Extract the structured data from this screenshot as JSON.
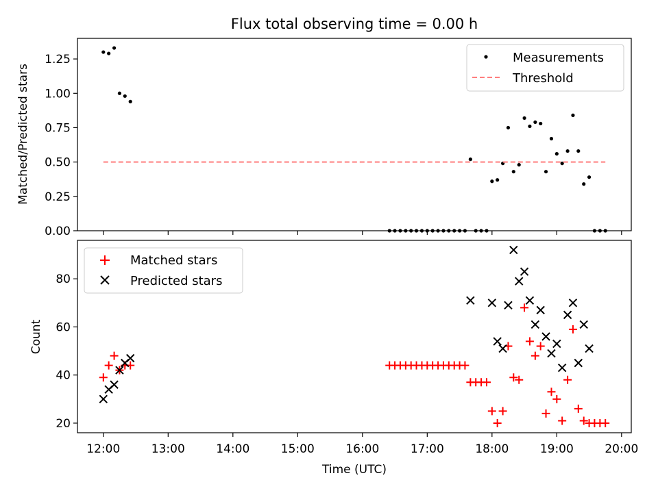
{
  "chart_data": [
    {
      "type": "scatter",
      "title": "Flux total observing time = 0.00 h",
      "xlabel": "",
      "ylabel": "Matched/Predicted stars",
      "xlim": [
        11.6,
        20.15
      ],
      "ylim": [
        0,
        1.4
      ],
      "xticks": [
        12,
        13,
        14,
        15,
        16,
        17,
        18,
        19,
        20
      ],
      "yticks": [
        0.0,
        0.25,
        0.5,
        0.75,
        1.0,
        1.25
      ],
      "ytick_labels": [
        "0.00",
        "0.25",
        "0.50",
        "0.75",
        "1.00",
        "1.25"
      ],
      "legend_position": "top-right",
      "series": [
        {
          "name": "Measurements",
          "kind": "scatter",
          "marker": "dot",
          "color": "#000000",
          "x": [
            12.0,
            12.083,
            12.167,
            12.25,
            12.333,
            12.417,
            16.417,
            16.5,
            16.583,
            16.667,
            16.75,
            16.833,
            16.917,
            17.0,
            17.083,
            17.167,
            17.25,
            17.333,
            17.417,
            17.5,
            17.583,
            17.667,
            17.75,
            17.833,
            17.917,
            18.0,
            18.083,
            18.167,
            18.25,
            18.333,
            18.417,
            18.5,
            18.583,
            18.667,
            18.75,
            18.833,
            18.917,
            19.0,
            19.083,
            19.167,
            19.25,
            19.333,
            19.417,
            19.5,
            19.583,
            19.667,
            19.75
          ],
          "y": [
            1.3,
            1.29,
            1.33,
            1.0,
            0.98,
            0.94,
            0.0,
            0.0,
            0.0,
            0.0,
            0.0,
            0.0,
            0.0,
            0.0,
            0.0,
            0.0,
            0.0,
            0.0,
            0.0,
            0.0,
            0.0,
            0.52,
            0.0,
            0.0,
            0.0,
            0.36,
            0.37,
            0.49,
            0.75,
            0.43,
            0.48,
            0.82,
            0.76,
            0.79,
            0.78,
            0.43,
            0.67,
            0.56,
            0.49,
            0.58,
            0.84,
            0.58,
            0.34,
            0.39,
            0.0,
            0.0,
            0.0
          ]
        },
        {
          "name": "Threshold",
          "kind": "line",
          "style": "dashed",
          "color": "#ff7f7f",
          "x": [
            12.0,
            19.75
          ],
          "y": [
            0.5,
            0.5
          ]
        }
      ]
    },
    {
      "type": "scatter",
      "title": "",
      "xlabel": "Time (UTC)",
      "ylabel": "Count",
      "xlim": [
        11.6,
        20.15
      ],
      "ylim": [
        16,
        96
      ],
      "xticks": [
        12,
        13,
        14,
        15,
        16,
        17,
        18,
        19,
        20
      ],
      "xtick_labels": [
        "12:00",
        "13:00",
        "14:00",
        "15:00",
        "16:00",
        "17:00",
        "18:00",
        "19:00",
        "20:00"
      ],
      "yticks": [
        20,
        40,
        60,
        80
      ],
      "ytick_labels": [
        "20",
        "40",
        "60",
        "80"
      ],
      "legend_position": "top-left",
      "series": [
        {
          "name": "Matched stars",
          "marker": "plus",
          "color": "#ff0000",
          "x": [
            12.0,
            12.083,
            12.167,
            12.25,
            12.333,
            12.417,
            16.417,
            16.5,
            16.583,
            16.667,
            16.75,
            16.833,
            16.917,
            17.0,
            17.083,
            17.167,
            17.25,
            17.333,
            17.417,
            17.5,
            17.583,
            17.667,
            17.75,
            17.833,
            17.917,
            18.0,
            18.083,
            18.167,
            18.25,
            18.333,
            18.417,
            18.5,
            18.583,
            18.667,
            18.75,
            18.833,
            18.917,
            19.0,
            19.083,
            19.167,
            19.25,
            19.333,
            19.417,
            19.5,
            19.583,
            19.667,
            19.75
          ],
          "y": [
            39,
            44,
            48,
            42,
            44,
            44,
            44,
            44,
            44,
            44,
            44,
            44,
            44,
            44,
            44,
            44,
            44,
            44,
            44,
            44,
            44,
            37,
            37,
            37,
            37,
            25,
            20,
            25,
            52,
            39,
            38,
            68,
            54,
            48,
            52,
            24,
            33,
            30,
            21,
            38,
            59,
            26,
            21,
            20,
            20,
            20,
            20
          ]
        },
        {
          "name": "Predicted stars",
          "marker": "x",
          "color": "#000000",
          "x": [
            12.0,
            12.083,
            12.167,
            12.25,
            12.333,
            12.417,
            17.667,
            18.0,
            18.083,
            18.167,
            18.25,
            18.333,
            18.417,
            18.5,
            18.583,
            18.667,
            18.75,
            18.833,
            18.917,
            19.0,
            19.083,
            19.167,
            19.25,
            19.333,
            19.417,
            19.5
          ],
          "y": [
            30,
            34,
            36,
            42,
            45,
            47,
            71,
            70,
            54,
            51,
            69,
            92,
            79,
            83,
            71,
            61,
            67,
            56,
            49,
            53,
            43,
            65,
            70,
            45,
            61,
            51
          ]
        }
      ]
    }
  ]
}
